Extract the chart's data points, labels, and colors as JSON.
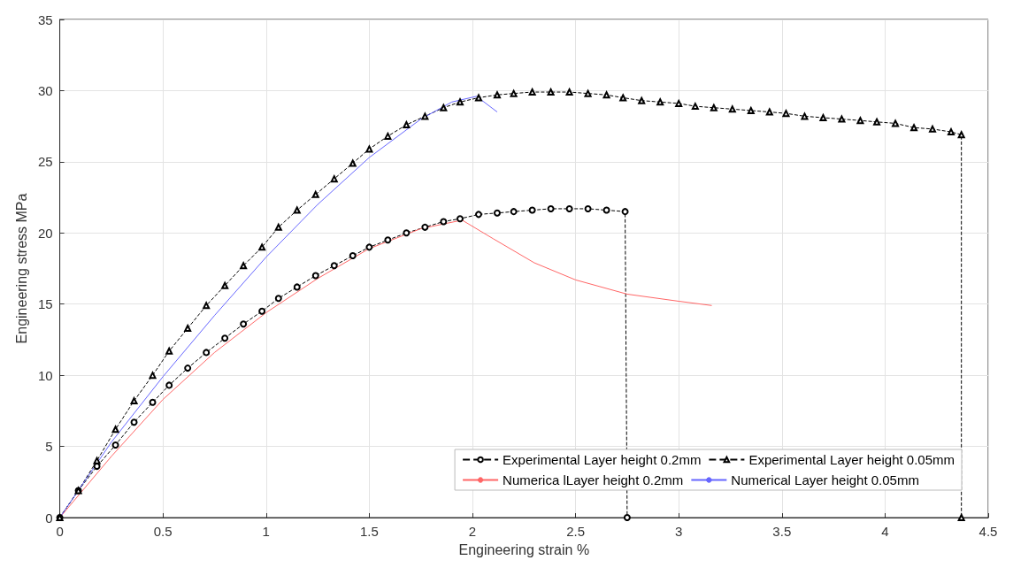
{
  "chart_data": {
    "type": "line",
    "xlabel": "Engineering strain %",
    "ylabel": "Engineering stress MPa",
    "xlim": [
      0,
      4.5
    ],
    "xticks": [
      0,
      0.5,
      1,
      1.5,
      2,
      2.5,
      3,
      3.5,
      4,
      4.5
    ],
    "ylim": [
      0,
      35
    ],
    "yticks": [
      0,
      5,
      10,
      15,
      20,
      25,
      30,
      35
    ],
    "grid": true,
    "legend": "bottom right",
    "series": [
      {
        "name": "Experimental Layer height 0.2mm",
        "color": "#000000",
        "marker": "circle",
        "line_style": "dashed",
        "x": [
          0,
          0.09,
          0.18,
          0.27,
          0.36,
          0.45,
          0.53,
          0.62,
          0.71,
          0.8,
          0.89,
          0.98,
          1.06,
          1.15,
          1.24,
          1.33,
          1.42,
          1.5,
          1.59,
          1.68,
          1.77,
          1.86,
          1.94,
          2.03,
          2.12,
          2.2,
          2.29,
          2.38,
          2.47,
          2.56,
          2.65,
          2.74,
          2.75
        ],
        "values": [
          0,
          1.9,
          3.6,
          5.1,
          6.7,
          8.1,
          9.3,
          10.5,
          11.6,
          12.6,
          13.6,
          14.5,
          15.4,
          16.2,
          17.0,
          17.7,
          18.4,
          19.0,
          19.5,
          20.0,
          20.4,
          20.8,
          21.0,
          21.3,
          21.4,
          21.5,
          21.6,
          21.7,
          21.7,
          21.7,
          21.6,
          21.5,
          0
        ]
      },
      {
        "name": "Experimental Layer height 0.05mm",
        "color": "#000000",
        "marker": "triangle",
        "line_style": "dashed",
        "x": [
          0,
          0.09,
          0.18,
          0.27,
          0.36,
          0.45,
          0.53,
          0.62,
          0.71,
          0.8,
          0.89,
          0.98,
          1.06,
          1.15,
          1.24,
          1.33,
          1.42,
          1.5,
          1.59,
          1.68,
          1.77,
          1.86,
          1.94,
          2.03,
          2.12,
          2.2,
          2.29,
          2.38,
          2.47,
          2.56,
          2.65,
          2.73,
          2.82,
          2.91,
          3.0,
          3.08,
          3.17,
          3.26,
          3.35,
          3.44,
          3.52,
          3.61,
          3.7,
          3.79,
          3.88,
          3.96,
          4.05,
          4.14,
          4.23,
          4.32,
          4.37,
          4.37
        ],
        "values": [
          0,
          1.9,
          4.0,
          6.2,
          8.2,
          10.0,
          11.7,
          13.3,
          14.9,
          16.3,
          17.7,
          19.0,
          20.4,
          21.6,
          22.7,
          23.8,
          24.9,
          25.9,
          26.8,
          27.6,
          28.2,
          28.8,
          29.2,
          29.5,
          29.7,
          29.8,
          29.9,
          29.9,
          29.9,
          29.8,
          29.7,
          29.5,
          29.3,
          29.2,
          29.1,
          28.9,
          28.8,
          28.7,
          28.6,
          28.5,
          28.4,
          28.2,
          28.1,
          28.0,
          27.9,
          27.8,
          27.7,
          27.4,
          27.3,
          27.1,
          26.9,
          0
        ]
      },
      {
        "name": "Numerica lLayer height 0.2mm",
        "color": "#ff6666",
        "marker": "none",
        "line_style": "solid",
        "x": [
          0,
          0.25,
          0.5,
          0.75,
          1.0,
          1.25,
          1.5,
          1.75,
          1.95,
          2.1,
          2.3,
          2.5,
          2.75,
          3.0,
          3.16
        ],
        "values": [
          0,
          4.3,
          8.3,
          11.6,
          14.4,
          16.8,
          18.9,
          20.3,
          20.9,
          19.6,
          17.9,
          16.7,
          15.7,
          15.2,
          14.9
        ]
      },
      {
        "name": "Numerical Layer height 0.05mm",
        "color": "#6666ff",
        "marker": "none",
        "line_style": "solid",
        "x": [
          0,
          0.25,
          0.5,
          0.75,
          1.0,
          1.25,
          1.5,
          1.75,
          1.9,
          2.02,
          2.12
        ],
        "values": [
          0,
          5.3,
          9.9,
          14.2,
          18.3,
          22.0,
          25.3,
          28.0,
          29.2,
          29.6,
          28.5
        ]
      }
    ]
  }
}
